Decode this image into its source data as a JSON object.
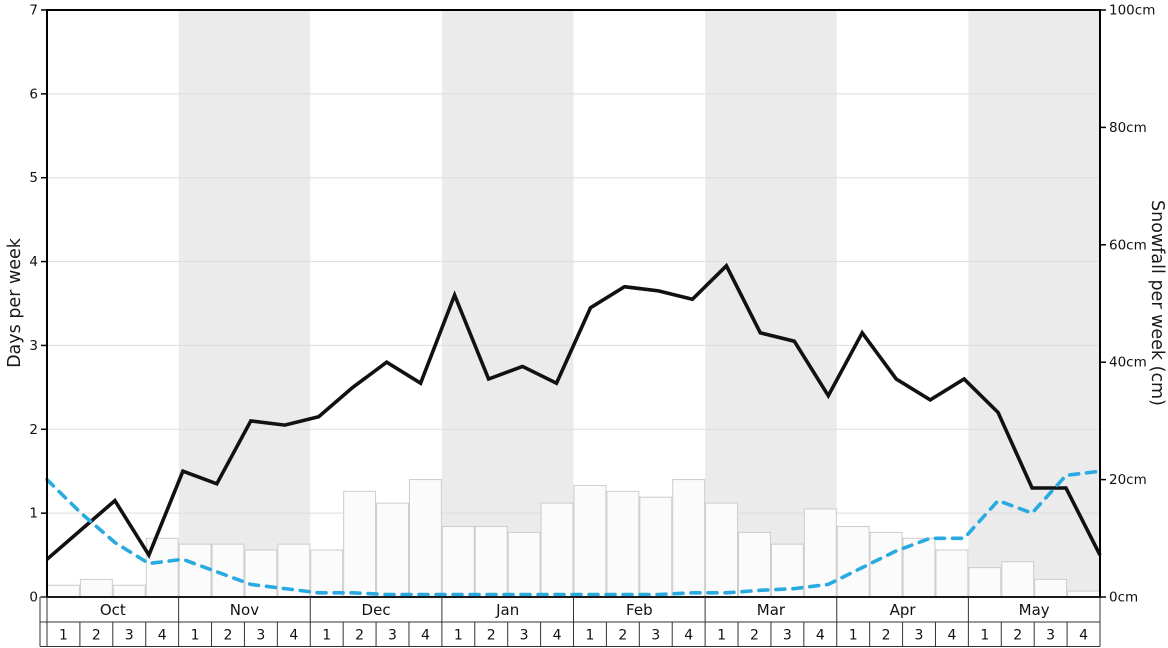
{
  "axes": {
    "left_label": "Days per week",
    "right_label": "Snowfall per week (cm)",
    "left_ticks": [
      "0",
      "1",
      "2",
      "3",
      "4",
      "5",
      "6",
      "7"
    ],
    "right_ticks": [
      "0cm",
      "20cm",
      "40cm",
      "60cm",
      "80cm",
      "100cm"
    ]
  },
  "colors": {
    "snow_days_line": "#111111",
    "rain_days_line": "#29abe2",
    "bar_fill": "#fbfbfb",
    "bar_border": "#cccccc",
    "month_band": "#ebebeb",
    "gridline": "#dddddd",
    "frame": "#000000",
    "table_line": "#333333"
  },
  "chart_data": {
    "type": "line+bar",
    "months": [
      "Oct",
      "Nov",
      "Dec",
      "Jan",
      "Feb",
      "Mar",
      "Apr",
      "May"
    ],
    "weeks_per_month": 4,
    "week_labels": [
      "1",
      "2",
      "3",
      "4"
    ],
    "shaded_month_indexes": [
      1,
      3,
      5,
      7
    ],
    "ylim_left": [
      0,
      7
    ],
    "ylim_right": [
      0,
      100
    ],
    "series": [
      {
        "name": "snow-days-per-week",
        "type": "line",
        "style": "solid",
        "axis": "left",
        "values": [
          0.45,
          0.8,
          1.15,
          0.5,
          1.5,
          1.35,
          2.1,
          2.05,
          2.15,
          2.5,
          2.8,
          2.55,
          3.6,
          2.6,
          2.75,
          2.55,
          3.45,
          3.7,
          3.65,
          3.55,
          3.95,
          3.15,
          3.05,
          2.4,
          3.15,
          2.6,
          2.35,
          2.6,
          2.2,
          1.3,
          1.3,
          0.5
        ]
      },
      {
        "name": "rain-days-per-week",
        "type": "line",
        "style": "dashed",
        "axis": "left",
        "values": [
          1.4,
          1.0,
          0.65,
          0.4,
          0.45,
          0.3,
          0.15,
          0.1,
          0.05,
          0.05,
          0.03,
          0.03,
          0.03,
          0.03,
          0.03,
          0.03,
          0.03,
          0.03,
          0.03,
          0.05,
          0.05,
          0.08,
          0.1,
          0.15,
          0.35,
          0.55,
          0.7,
          0.7,
          1.15,
          1.0,
          1.45,
          1.5
        ]
      },
      {
        "name": "snowfall-per-week-cm",
        "type": "bar",
        "axis": "right",
        "values": [
          2,
          3,
          2,
          10,
          9,
          9,
          8,
          9,
          8,
          18,
          16,
          20,
          12,
          12,
          11,
          16,
          19,
          18,
          17,
          20,
          16,
          11,
          9,
          15,
          12,
          11,
          10,
          8,
          5,
          6,
          3,
          1
        ]
      }
    ]
  }
}
